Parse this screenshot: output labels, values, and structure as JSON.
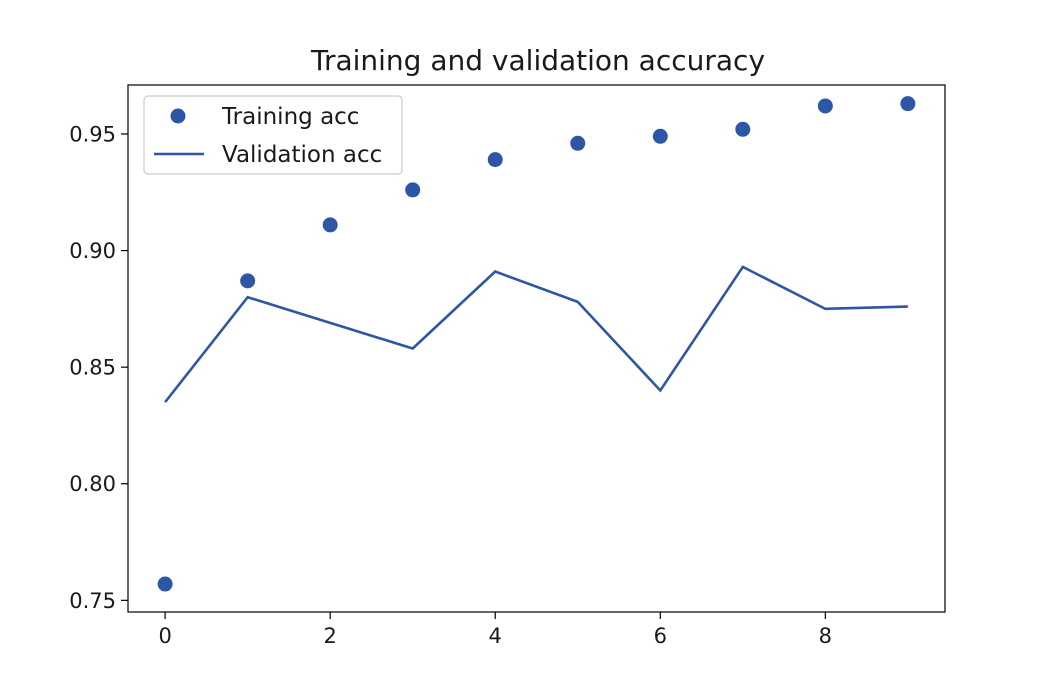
{
  "chart_data": {
    "type": "scatter",
    "title": "Training and validation accuracy",
    "xlabel": "",
    "ylabel": "",
    "x": [
      0,
      1,
      2,
      3,
      4,
      5,
      6,
      7,
      8,
      9
    ],
    "xlim": [
      -0.45,
      9.45
    ],
    "ylim": [
      0.745,
      0.971
    ],
    "xticks": [
      0,
      2,
      4,
      6,
      8
    ],
    "xtick_labels": [
      "0",
      "2",
      "4",
      "6",
      "8"
    ],
    "yticks": [
      0.75,
      0.8,
      0.85,
      0.9,
      0.95
    ],
    "ytick_labels": [
      "0.75",
      "0.80",
      "0.85",
      "0.90",
      "0.95"
    ],
    "grid": false,
    "legend_position": "top-left",
    "series": [
      {
        "name": "Training acc",
        "style": "markers",
        "color": "#2e56a6",
        "values": [
          0.757,
          0.887,
          0.911,
          0.926,
          0.939,
          0.946,
          0.949,
          0.952,
          0.962,
          0.963
        ]
      },
      {
        "name": "Validation acc",
        "style": "line",
        "color": "#2e56a6",
        "values": [
          0.835,
          0.88,
          0.869,
          0.858,
          0.891,
          0.878,
          0.84,
          0.893,
          0.875,
          0.876
        ]
      }
    ]
  }
}
